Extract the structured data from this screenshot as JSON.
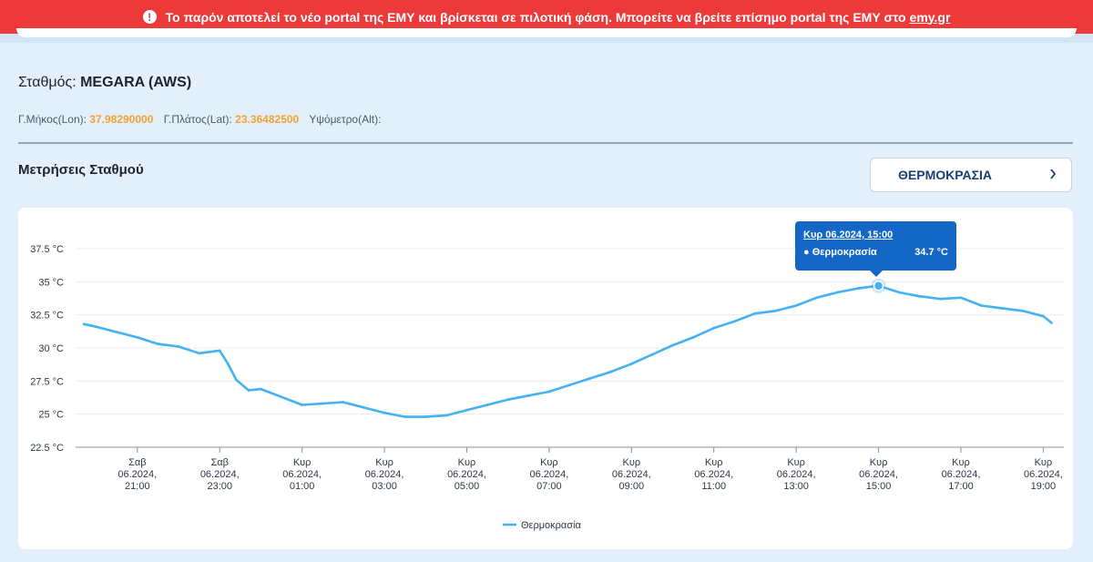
{
  "banner": {
    "icon": "exclamation-icon",
    "text": "Το παρόν αποτελεί το νέο portal της ΕΜΥ και βρίσκεται σε πιλοτική φάση. Μπορείτε να βρείτε επίσημο portal της ΕΜΥ στο",
    "link": "emy.gr",
    "color": "#ec3a3a"
  },
  "station": {
    "label": "Σταθμός:",
    "name": "MEGARA (AWS)",
    "lon_label": "Γ.Μήκος(Lon):",
    "lon_value": "37.98290000",
    "lat_label": "Γ.Πλάτος(Lat):",
    "lat_value": "23.36482500",
    "alt_label": "Υψόμετρο(Alt):",
    "alt_value": ""
  },
  "measurements": {
    "title": "Μετρήσεις Σταθμού",
    "selector": "ΘΕΡΜΟΚΡΑΣΙΑ",
    "selector_icon": "chevron-right-icon"
  },
  "tooltip": {
    "date": "Κυρ 06.2024, 15:00",
    "series": "● Θερμοκρασία",
    "value": "34.7 °C"
  },
  "chart_data": {
    "type": "line",
    "title": "",
    "xlabel": "",
    "ylabel": "",
    "ylim": [
      22.5,
      37.5
    ],
    "yticks": [
      "37.5 °C",
      "35 °C",
      "32.5 °C",
      "30 °C",
      "27.5 °C",
      "25 °C",
      "22.5 °C"
    ],
    "ytick_values": [
      37.5,
      35,
      32.5,
      30,
      27.5,
      25,
      22.5
    ],
    "x_hours": [
      19.5,
      21,
      23,
      25,
      27,
      29,
      31,
      33,
      35,
      37,
      39,
      41,
      43,
      43.5
    ],
    "xticks": [
      {
        "hour": 21,
        "day": "Σαβ",
        "month": "06.2024,",
        "time": "21:00"
      },
      {
        "hour": 23,
        "day": "Σαβ",
        "month": "06.2024,",
        "time": "23:00"
      },
      {
        "hour": 25,
        "day": "Κυρ",
        "month": "06.2024,",
        "time": "01:00"
      },
      {
        "hour": 27,
        "day": "Κυρ",
        "month": "06.2024,",
        "time": "03:00"
      },
      {
        "hour": 29,
        "day": "Κυρ",
        "month": "06.2024,",
        "time": "05:00"
      },
      {
        "hour": 31,
        "day": "Κυρ",
        "month": "06.2024,",
        "time": "07:00"
      },
      {
        "hour": 33,
        "day": "Κυρ",
        "month": "06.2024,",
        "time": "09:00"
      },
      {
        "hour": 35,
        "day": "Κυρ",
        "month": "06.2024,",
        "time": "11:00"
      },
      {
        "hour": 37,
        "day": "Κυρ",
        "month": "06.2024,",
        "time": "13:00"
      },
      {
        "hour": 39,
        "day": "Κυρ",
        "month": "06.2024,",
        "time": "15:00"
      },
      {
        "hour": 41,
        "day": "Κυρ",
        "month": "06.2024,",
        "time": "17:00"
      },
      {
        "hour": 43,
        "day": "Κυρ",
        "month": "06.2024,",
        "time": "19:00"
      }
    ],
    "series": [
      {
        "name": "Θερμοκρασία",
        "color": "#43b1f2",
        "x": [
          19.7,
          20.0,
          20.5,
          21.0,
          21.5,
          22.0,
          22.5,
          23.0,
          23.2,
          23.4,
          23.7,
          24.0,
          24.5,
          25.0,
          25.5,
          26.0,
          26.5,
          27.0,
          27.5,
          28.0,
          28.5,
          29.0,
          29.5,
          30.0,
          30.5,
          31.0,
          31.5,
          32.0,
          32.5,
          33.0,
          33.5,
          34.0,
          34.5,
          35.0,
          35.5,
          36.0,
          36.5,
          37.0,
          37.5,
          38.0,
          38.5,
          39.0,
          39.5,
          40.0,
          40.5,
          41.0,
          41.5,
          42.0,
          42.5,
          43.0,
          43.2
        ],
        "values": [
          31.8,
          31.6,
          31.2,
          30.8,
          30.3,
          30.1,
          29.6,
          29.8,
          28.8,
          27.6,
          26.8,
          26.9,
          26.3,
          25.7,
          25.8,
          25.9,
          25.5,
          25.1,
          24.8,
          24.8,
          24.9,
          25.3,
          25.7,
          26.1,
          26.4,
          26.7,
          27.2,
          27.7,
          28.2,
          28.8,
          29.5,
          30.2,
          30.8,
          31.5,
          32.0,
          32.6,
          32.8,
          33.2,
          33.8,
          34.2,
          34.5,
          34.7,
          34.2,
          33.9,
          33.7,
          33.8,
          33.2,
          33.0,
          32.8,
          32.4,
          31.9
        ]
      }
    ],
    "highlight": {
      "x": 39.0,
      "value": 34.7
    },
    "legend": "bottom",
    "grid": true
  }
}
